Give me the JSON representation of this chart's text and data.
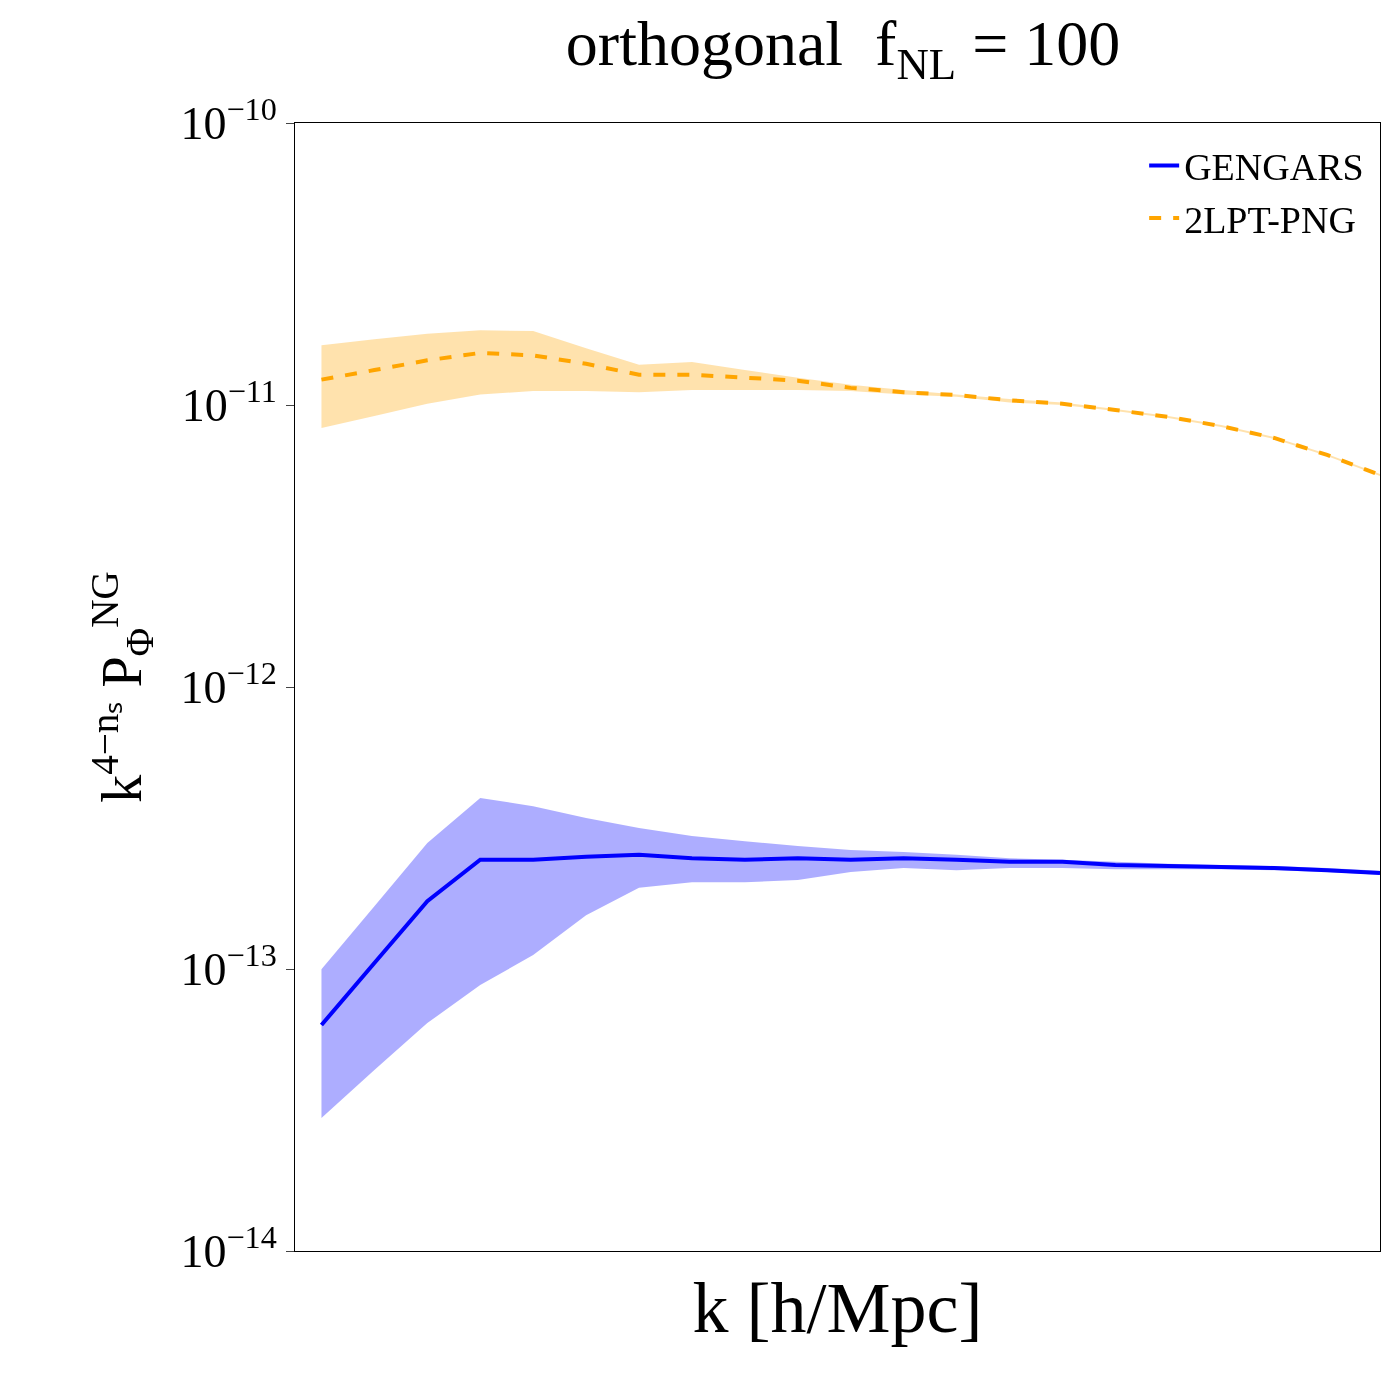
{
  "chart_data": {
    "type": "line",
    "title": "orthogonal  f$_{NL}$ = 100",
    "xlabel": "k [h/Mpc]",
    "ylabel": "k$^{4−nₛ}$ P$_{Φ}$$^{NG}$",
    "categories": [
      null,
      null,
      null,
      null,
      null,
      null,
      null,
      null,
      null,
      null,
      null,
      null,
      null,
      null,
      null,
      null,
      null,
      null,
      null,
      null,
      null
    ],
    "series": [
      {
        "name": "GENGARS",
        "color": "#0000ff",
        "line_style": "solid",
        "values": [
          6.33e-14,
          1.05e-13,
          1.74e-13,
          2.44e-13,
          2.44e-13,
          2.5e-13,
          2.54e-13,
          2.47e-13,
          2.44e-13,
          2.47e-13,
          2.44e-13,
          2.47e-13,
          2.44e-13,
          2.4e-13,
          2.4e-13,
          2.34e-13,
          2.32e-13,
          2.3e-13,
          2.28e-13,
          2.24e-13,
          2.19e-13
        ],
        "lower": [
          2.96e-14,
          4.38e-14,
          6.43e-14,
          8.77e-14,
          1.12e-13,
          1.55e-13,
          1.94e-13,
          2.03e-13,
          2.03e-13,
          2.07e-13,
          2.21e-13,
          2.28e-13,
          2.24e-13,
          2.28e-13,
          2.28e-13,
          2.26e-13,
          2.26e-13,
          2.26e-13,
          2.24e-13,
          2.21e-13,
          2.16e-13
        ],
        "upper": [
          9.98e-14,
          1.67e-13,
          2.8e-13,
          4.04e-13,
          3.78e-13,
          3.43e-13,
          3.16e-13,
          2.96e-13,
          2.84e-13,
          2.73e-13,
          2.64e-13,
          2.6e-13,
          2.54e-13,
          2.47e-13,
          2.44e-13,
          2.4e-13,
          2.36e-13,
          2.34e-13,
          2.32e-13,
          2.28e-13,
          2.23e-13
        ]
      },
      {
        "name": "2LPT-PNG",
        "color": "#ffa500",
        "line_style": "dashed",
        "values": [
          1.23e-11,
          1.33e-11,
          1.44e-11,
          1.53e-11,
          1.5e-11,
          1.4e-11,
          1.28e-11,
          1.28e-11,
          1.25e-11,
          1.22e-11,
          1.15e-11,
          1.11e-11,
          1.085e-11,
          1.04e-11,
          1.01e-11,
          9.6e-12,
          9.07e-12,
          8.42e-12,
          7.64e-12,
          6.65e-12,
          5.65e-12
        ],
        "lower": [
          8.29e-12,
          9.14e-12,
          1.01e-11,
          1.09e-11,
          1.12e-11,
          1.12e-11,
          1.11e-11,
          1.13e-11,
          1.13e-11,
          1.13e-11,
          1.12e-11,
          1.09e-11,
          1.07e-11,
          1.02e-11,
          1e-11,
          9.52e-12,
          8.99e-12,
          8.36e-12,
          7.57e-12,
          6.59e-12,
          5.6e-12
        ],
        "upper": [
          1.63e-11,
          1.71e-11,
          1.79e-11,
          1.84e-11,
          1.83e-11,
          1.59e-11,
          1.39e-11,
          1.42e-11,
          1.33e-11,
          1.25e-11,
          1.18e-11,
          1.13e-11,
          1.09e-11,
          1.05e-11,
          1.02e-11,
          9.68e-12,
          9.14e-12,
          8.49e-12,
          7.7e-12,
          6.7e-12,
          5.69e-12
        ]
      }
    ],
    "log": "y",
    "ylim": [
      1e-14,
      1e-10
    ],
    "yticks": [
      {
        "value": 1e-14,
        "label": "10$^{−14}$"
      },
      {
        "value": 1e-13,
        "label": "10$^{−13}$"
      },
      {
        "value": 1e-12,
        "label": "10$^{−12}$"
      },
      {
        "value": 1e-11,
        "label": "10$^{−11}$"
      },
      {
        "value": 1e-10,
        "label": "10$^{−10}$"
      }
    ],
    "tick_labels": "y",
    "legend": "top right"
  }
}
